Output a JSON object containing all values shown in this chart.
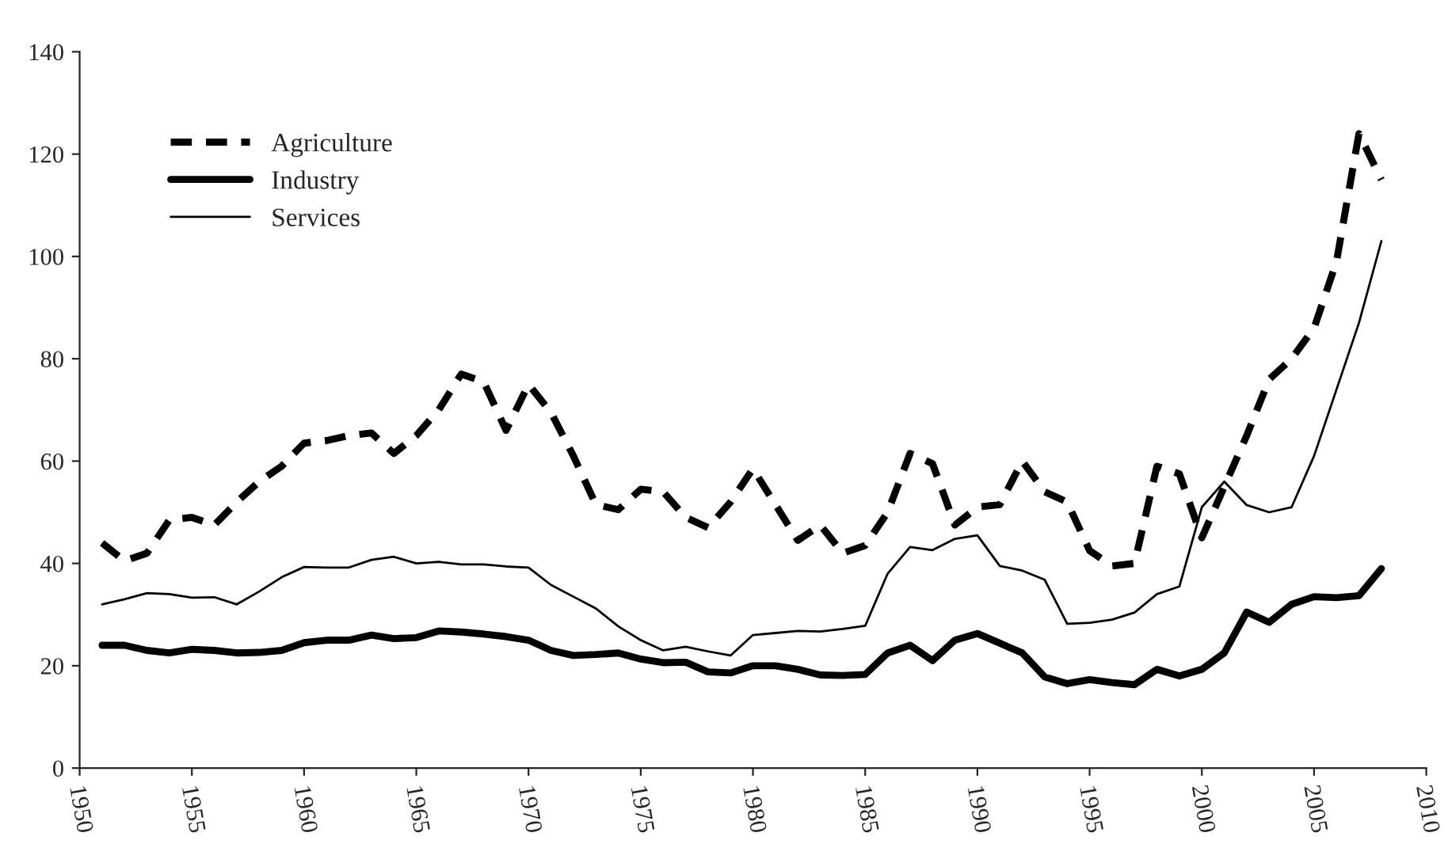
{
  "chart_data": {
    "type": "line",
    "x": [
      1951,
      1952,
      1953,
      1954,
      1955,
      1956,
      1957,
      1958,
      1959,
      1960,
      1961,
      1962,
      1963,
      1964,
      1965,
      1966,
      1967,
      1968,
      1969,
      1970,
      1971,
      1972,
      1973,
      1974,
      1975,
      1976,
      1977,
      1978,
      1979,
      1980,
      1981,
      1982,
      1983,
      1984,
      1985,
      1986,
      1987,
      1988,
      1989,
      1990,
      1991,
      1992,
      1993,
      1994,
      1995,
      1996,
      1997,
      1998,
      1999,
      2000,
      2001,
      2002,
      2003,
      2004,
      2005,
      2006,
      2007,
      2008
    ],
    "series": [
      {
        "name": "Agriculture",
        "color": "#000000",
        "line_style": "dashed",
        "values": [
          44,
          40.5,
          42,
          48.5,
          49,
          47.5,
          52,
          56,
          59,
          63.5,
          64,
          65,
          65.5,
          61.5,
          65,
          70,
          77,
          75.5,
          66,
          75,
          69.5,
          61,
          51.5,
          50.5,
          54.5,
          54,
          49,
          47,
          52,
          58.5,
          51.5,
          44.5,
          47.5,
          42,
          43.5,
          50,
          61.5,
          59.5,
          47.5,
          51,
          51.5,
          60,
          54,
          52,
          42.5,
          39.5,
          40,
          59,
          57.5,
          45,
          55,
          65,
          76,
          80,
          86,
          99,
          124,
          115
        ]
      },
      {
        "name": "Industry",
        "color": "#000000",
        "line_style": "solid",
        "values": [
          24,
          24,
          23,
          22.5,
          23.2,
          23,
          22.5,
          22.6,
          23,
          24.5,
          25,
          25,
          26,
          25.3,
          25.5,
          26.8,
          26.6,
          26.2,
          25.7,
          25,
          23,
          22,
          22.2,
          22.5,
          21.3,
          20.6,
          20.7,
          18.8,
          18.6,
          20,
          20,
          19.3,
          18.2,
          18.1,
          18.3,
          22.5,
          24,
          21,
          25,
          26.3,
          24.4,
          22.5,
          17.8,
          16.5,
          17.3,
          16.7,
          16.3,
          19.3,
          18,
          19.3,
          22.5,
          30.5,
          28.5,
          32,
          33.5,
          33.3,
          33.7,
          39
        ]
      },
      {
        "name": "Services",
        "color": "#000000",
        "line_style": "solid",
        "values": [
          32,
          33,
          34.2,
          34,
          33.3,
          33.4,
          32,
          34.5,
          37.3,
          39.3,
          39.2,
          39.2,
          40.7,
          41.3,
          40,
          40.3,
          39.8,
          39.8,
          39.4,
          39.2,
          35.8,
          33.5,
          31.2,
          27.7,
          25,
          23,
          23.7,
          22.8,
          22,
          26,
          26.4,
          26.8,
          26.7,
          27.2,
          27.8,
          38,
          43.2,
          42.6,
          44.8,
          45.5,
          39.5,
          38.6,
          36.8,
          28.2,
          28.4,
          29,
          30.4,
          34,
          35.5,
          51,
          56,
          51.4,
          50,
          51,
          61,
          74,
          87,
          103
        ]
      }
    ],
    "xlim": [
      1950,
      2010
    ],
    "xticks": [
      1950,
      1955,
      1960,
      1965,
      1970,
      1975,
      1980,
      1985,
      1990,
      1995,
      2000,
      2005,
      2010
    ],
    "ylim": [
      0,
      140
    ],
    "yticks": [
      0,
      20,
      40,
      60,
      80,
      100,
      120,
      140
    ],
    "legend": "top left",
    "grid": false
  }
}
